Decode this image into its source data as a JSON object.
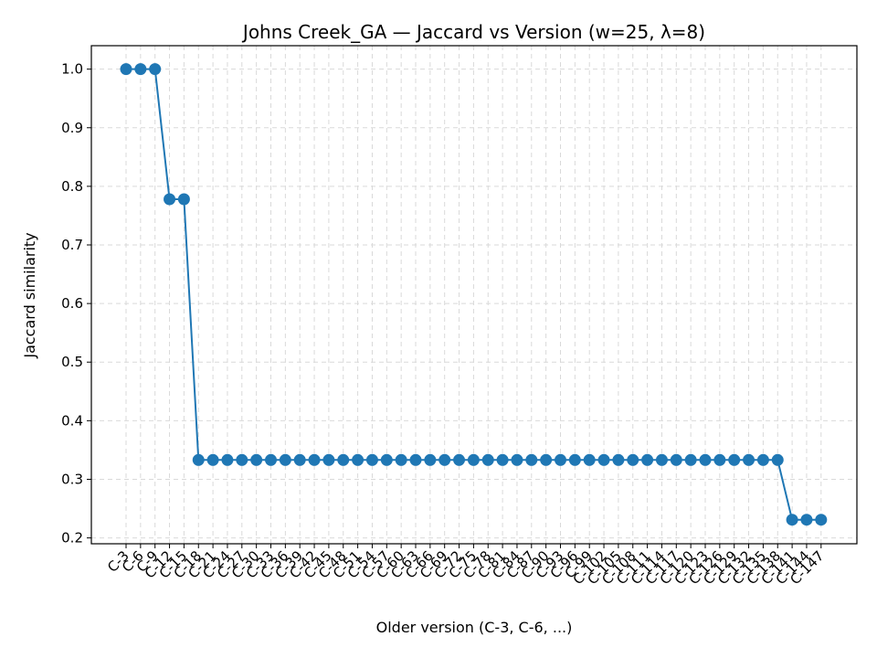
{
  "chart_data": {
    "type": "line",
    "title": "Johns Creek_GA — Jaccard vs Version (w=25, λ=8)",
    "xlabel": "Older version (C-3, C-6, ...)",
    "ylabel": "Jaccard similarity",
    "ylim": [
      0.19,
      1.04
    ],
    "yticks": [
      0.2,
      0.3,
      0.4,
      0.5,
      0.6,
      0.7,
      0.8,
      0.9,
      1.0
    ],
    "grid": true,
    "color": "#1f77b4",
    "categories": [
      "C-3",
      "C-6",
      "C-9",
      "C-12",
      "C-15",
      "C-18",
      "C-21",
      "C-24",
      "C-27",
      "C-30",
      "C-33",
      "C-36",
      "C-39",
      "C-42",
      "C-45",
      "C-48",
      "C-51",
      "C-54",
      "C-57",
      "C-60",
      "C-63",
      "C-66",
      "C-69",
      "C-72",
      "C-75",
      "C-78",
      "C-81",
      "C-84",
      "C-87",
      "C-90",
      "C-93",
      "C-96",
      "C-99",
      "C-102",
      "C-105",
      "C-108",
      "C-111",
      "C-114",
      "C-117",
      "C-120",
      "C-123",
      "C-126",
      "C-129",
      "C-132",
      "C-135",
      "C-138",
      "C-141",
      "C-144",
      "C-147"
    ],
    "series": [
      {
        "values": [
          1.0,
          1.0,
          1.0,
          0.778,
          0.778,
          0.333,
          0.333,
          0.333,
          0.333,
          0.333,
          0.333,
          0.333,
          0.333,
          0.333,
          0.333,
          0.333,
          0.333,
          0.333,
          0.333,
          0.333,
          0.333,
          0.333,
          0.333,
          0.333,
          0.333,
          0.333,
          0.333,
          0.333,
          0.333,
          0.333,
          0.333,
          0.333,
          0.333,
          0.333,
          0.333,
          0.333,
          0.333,
          0.333,
          0.333,
          0.333,
          0.333,
          0.333,
          0.333,
          0.333,
          0.333,
          0.333,
          0.231,
          0.231,
          0.231
        ]
      }
    ]
  }
}
